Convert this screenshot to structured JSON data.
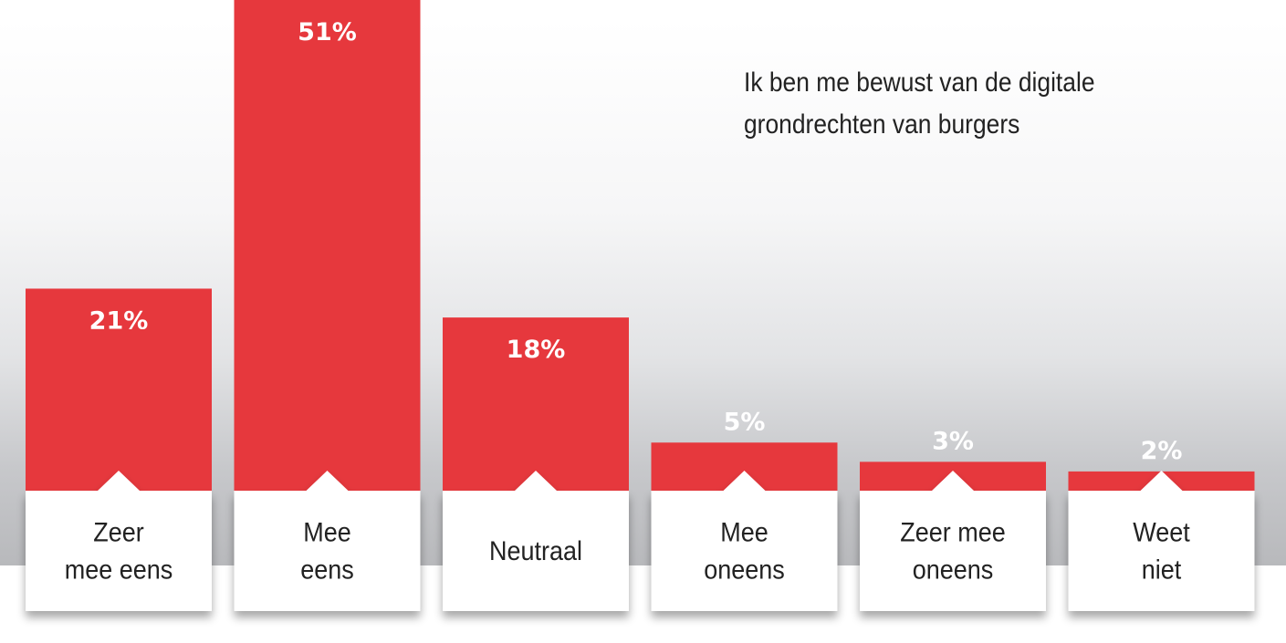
{
  "chart_data": {
    "type": "bar",
    "title_lines": [
      "Ik ben me bewust van de digitale",
      "grondrechten van burgers"
    ],
    "categories": [
      [
        "Zeer",
        "mee eens"
      ],
      [
        "Mee",
        "eens"
      ],
      [
        "Neutraal"
      ],
      [
        "Mee",
        "oneens"
      ],
      [
        "Zeer mee",
        "oneens"
      ],
      [
        "Weet",
        "niet"
      ]
    ],
    "values": [
      21,
      51,
      18,
      5,
      3,
      2
    ],
    "value_labels": [
      "21%",
      "51%",
      "18%",
      "5%",
      "3%",
      "2%"
    ],
    "ylim": [
      0,
      51
    ],
    "xlabel": "",
    "ylabel": "",
    "grid": false,
    "legend": "none",
    "bar_color": "#e6383d",
    "label_box_color": "#ffffff",
    "value_label_color_inside": "#ffffff",
    "value_label_color_outside": "#ffffff",
    "axis_text_color": "#222222"
  }
}
